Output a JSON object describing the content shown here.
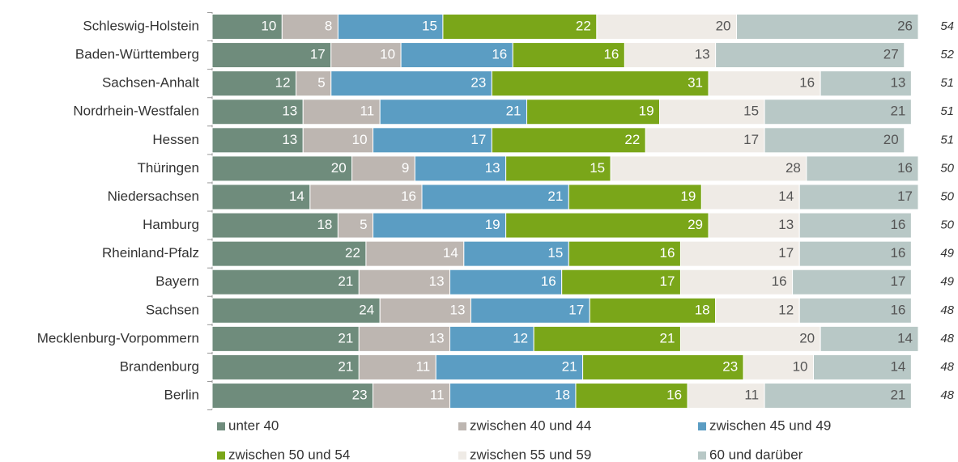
{
  "chart_data": {
    "type": "stacked_bar_horizontal",
    "categories": [
      "Schleswig-Holstein",
      "Baden-Württemberg",
      "Sachsen-Anhalt",
      "Nordrhein-Westfalen",
      "Hessen",
      "Thüringen",
      "Niedersachsen",
      "Hamburg",
      "Rheinland-Pfalz",
      "Bayern",
      "Sachsen",
      "Mecklenburg-Vorpommern",
      "Brandenburg",
      "Berlin"
    ],
    "series": [
      {
        "name": "unter 40",
        "color": "#6f8c7c",
        "values": [
          10,
          17,
          12,
          13,
          13,
          20,
          14,
          18,
          22,
          21,
          24,
          21,
          21,
          23
        ]
      },
      {
        "name": "zwischen 40 und 44",
        "color": "#bdb6b1",
        "values": [
          8,
          10,
          5,
          11,
          10,
          9,
          16,
          5,
          14,
          13,
          13,
          13,
          11,
          11
        ]
      },
      {
        "name": "zwischen 45 und 49",
        "color": "#5b9dc3",
        "values": [
          15,
          16,
          23,
          21,
          17,
          13,
          21,
          19,
          15,
          16,
          17,
          12,
          21,
          18
        ]
      },
      {
        "name": "zwischen 50 und 54",
        "color": "#7aa619",
        "values": [
          22,
          16,
          31,
          19,
          22,
          15,
          19,
          29,
          16,
          17,
          18,
          21,
          23,
          16
        ]
      },
      {
        "name": "zwischen 55 und 59",
        "color": "#efebe6",
        "values": [
          20,
          13,
          16,
          15,
          17,
          28,
          14,
          13,
          17,
          16,
          12,
          20,
          10,
          11
        ]
      },
      {
        "name": "60 und darüber",
        "color": "#b8c8c6",
        "values": [
          26,
          27,
          13,
          21,
          20,
          16,
          17,
          16,
          16,
          17,
          16,
          14,
          14,
          21
        ]
      }
    ],
    "side_values": [
      54,
      52,
      51,
      51,
      51,
      50,
      50,
      50,
      49,
      49,
      48,
      48,
      48,
      48
    ],
    "xlim": [
      0,
      101
    ]
  }
}
